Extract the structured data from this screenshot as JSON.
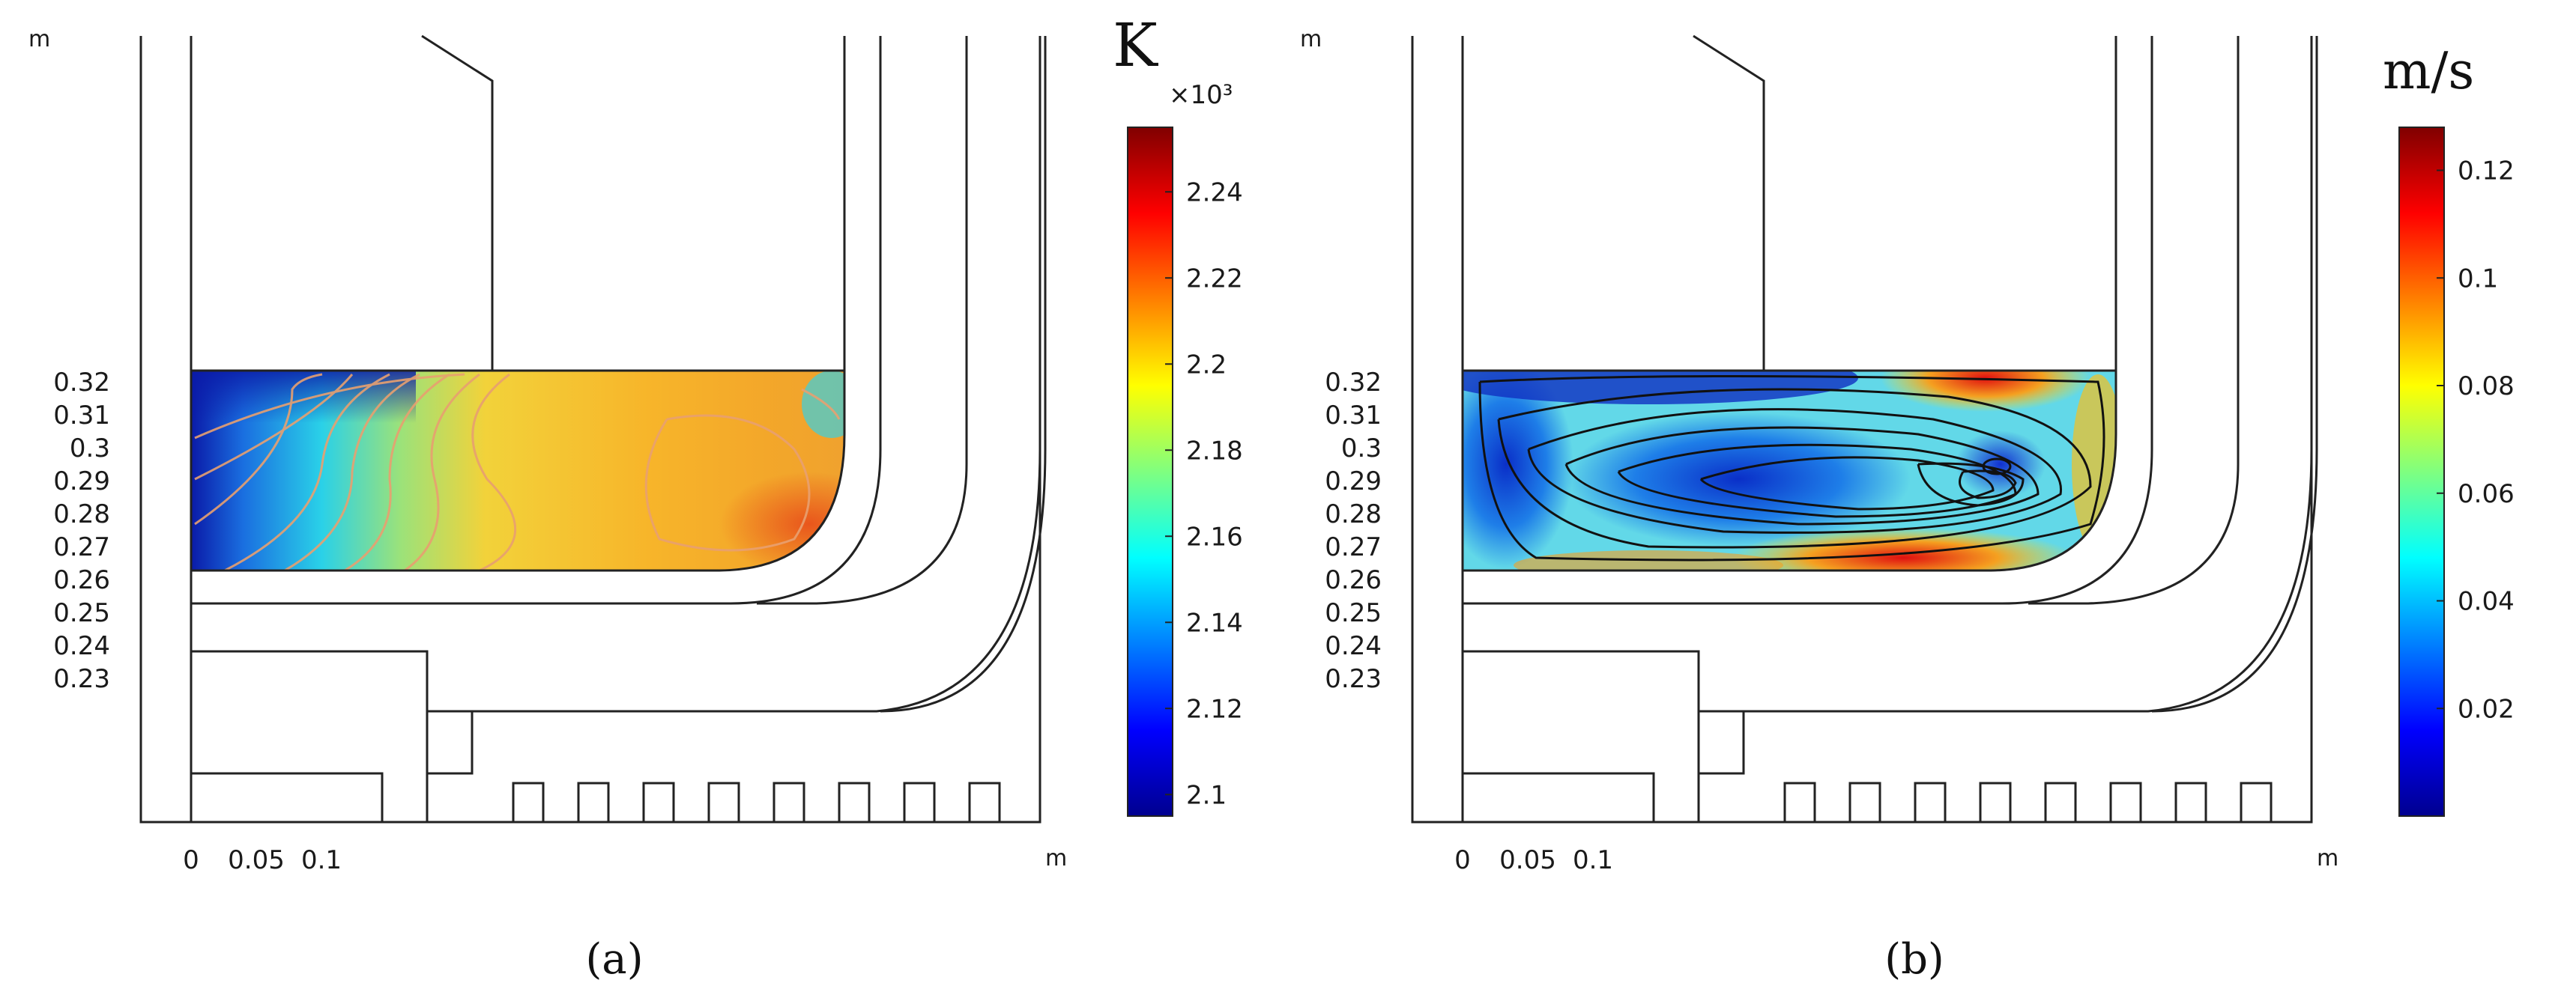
{
  "chart_data": [
    {
      "type": "heatmap",
      "panel_label": "(a)",
      "quantity_unit": "K",
      "scale_factor_label": "×10³",
      "x_unit": "m",
      "y_unit": "m",
      "x_ticks": [
        0,
        0.05,
        0.1
      ],
      "y_ticks": [
        0.23,
        0.24,
        0.25,
        0.26,
        0.27,
        0.28,
        0.29,
        0.3,
        0.31,
        0.32
      ],
      "colorbar": {
        "min": 2.095,
        "max": 2.255,
        "ticks": [
          2.1,
          2.12,
          2.14,
          2.16,
          2.18,
          2.2,
          2.22,
          2.24
        ],
        "colormap": "jet"
      },
      "overlay": "isotherm contours"
    },
    {
      "type": "heatmap",
      "panel_label": "(b)",
      "quantity_unit": "m/s",
      "x_unit": "m",
      "y_unit": "m",
      "x_ticks": [
        0,
        0.05,
        0.1
      ],
      "y_ticks": [
        0.23,
        0.24,
        0.25,
        0.26,
        0.27,
        0.28,
        0.29,
        0.3,
        0.31,
        0.32
      ],
      "colorbar": {
        "min": 0.0,
        "max": 0.128,
        "ticks": [
          0.02,
          0.04,
          0.06,
          0.08,
          0.1,
          0.12
        ],
        "colormap": "jet"
      },
      "overlay": "streamlines"
    }
  ]
}
